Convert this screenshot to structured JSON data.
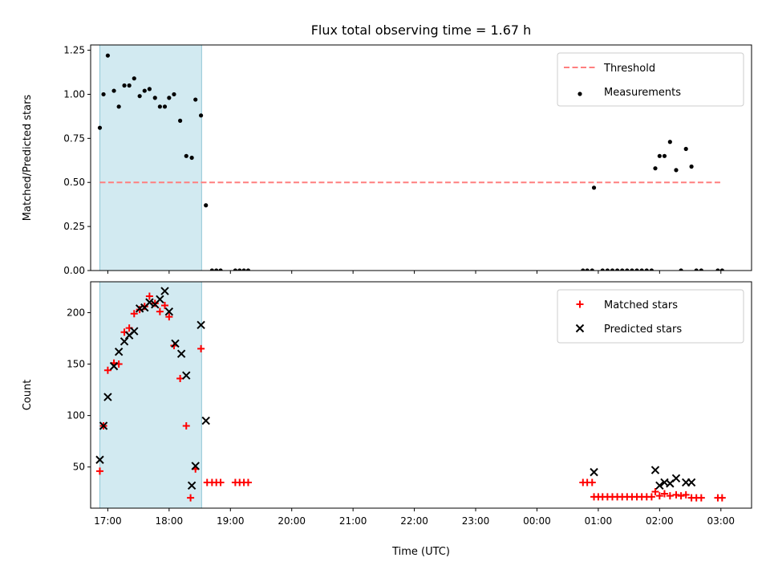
{
  "title": "Flux total observing time = 1.67 h",
  "colors": {
    "span": "#add8e6",
    "threshold": "#ff7f7f",
    "measurement": "#000000",
    "matched": "#ff0000",
    "predicted": "#000000"
  },
  "chart_data": [
    {
      "type": "scatter",
      "ylabel": "Matched/Predicted stars",
      "ylim": [
        0,
        1.28
      ],
      "yticks": [
        0,
        0.25,
        0.5,
        0.75,
        1.0,
        1.25
      ],
      "ytick_labels": [
        "0.00",
        "0.25",
        "0.50",
        "0.75",
        "1.00",
        "1.25"
      ],
      "xlim": [
        16.72,
        27.5
      ],
      "show_x_tick_labels": false,
      "legend_position": "upper right",
      "highlight_span": [
        16.87,
        18.53
      ],
      "threshold": {
        "name": "Threshold",
        "y": 0.5,
        "x_range": [
          16.87,
          27.0
        ],
        "style": "dashed"
      },
      "series": [
        {
          "name": "Measurements",
          "marker": "dot",
          "points": [
            [
              16.87,
              0.81
            ],
            [
              16.93,
              1.0
            ],
            [
              17.0,
              1.22
            ],
            [
              17.1,
              1.02
            ],
            [
              17.18,
              0.93
            ],
            [
              17.27,
              1.05
            ],
            [
              17.35,
              1.05
            ],
            [
              17.43,
              1.09
            ],
            [
              17.52,
              0.99
            ],
            [
              17.6,
              1.02
            ],
            [
              17.68,
              1.03
            ],
            [
              17.77,
              0.98
            ],
            [
              17.85,
              0.93
            ],
            [
              17.93,
              0.93
            ],
            [
              18.0,
              0.98
            ],
            [
              18.08,
              1.0
            ],
            [
              18.18,
              0.85
            ],
            [
              18.28,
              0.65
            ],
            [
              18.37,
              0.64
            ],
            [
              18.43,
              0.97
            ],
            [
              18.52,
              0.88
            ],
            [
              18.6,
              0.37
            ],
            [
              18.7,
              0.0
            ],
            [
              18.77,
              0.0
            ],
            [
              18.84,
              0.0
            ],
            [
              19.08,
              0.0
            ],
            [
              19.15,
              0.0
            ],
            [
              19.22,
              0.0
            ],
            [
              19.29,
              0.0
            ],
            [
              24.75,
              0.0
            ],
            [
              24.82,
              0.0
            ],
            [
              24.9,
              0.0
            ],
            [
              24.93,
              0.47
            ],
            [
              25.07,
              0.0
            ],
            [
              25.15,
              0.0
            ],
            [
              25.23,
              0.0
            ],
            [
              25.31,
              0.0
            ],
            [
              25.39,
              0.0
            ],
            [
              25.47,
              0.0
            ],
            [
              25.55,
              0.0
            ],
            [
              25.63,
              0.0
            ],
            [
              25.71,
              0.0
            ],
            [
              25.79,
              0.0
            ],
            [
              25.87,
              0.0
            ],
            [
              25.93,
              0.58
            ],
            [
              26.0,
              0.65
            ],
            [
              26.08,
              0.65
            ],
            [
              26.17,
              0.73
            ],
            [
              26.27,
              0.57
            ],
            [
              26.43,
              0.69
            ],
            [
              26.52,
              0.59
            ],
            [
              26.35,
              0.0
            ],
            [
              26.6,
              0.0
            ],
            [
              26.68,
              0.0
            ],
            [
              26.95,
              0.0
            ],
            [
              27.02,
              0.0
            ]
          ]
        }
      ]
    },
    {
      "type": "scatter",
      "ylabel": "Count",
      "xlabel": "Time (UTC)",
      "ylim": [
        10,
        230
      ],
      "yticks": [
        50,
        100,
        150,
        200
      ],
      "ytick_labels": [
        "50",
        "100",
        "150",
        "200"
      ],
      "xlim": [
        16.72,
        27.5
      ],
      "xticks": [
        17,
        18,
        19,
        20,
        21,
        22,
        23,
        24,
        25,
        26,
        27
      ],
      "xtick_labels": [
        "17:00",
        "18:00",
        "19:00",
        "20:00",
        "21:00",
        "22:00",
        "23:00",
        "00:00",
        "01:00",
        "02:00",
        "03:00"
      ],
      "legend_position": "upper right",
      "highlight_span": [
        16.87,
        18.53
      ],
      "series": [
        {
          "name": "Matched stars",
          "marker": "plus",
          "points": [
            [
              16.87,
              46
            ],
            [
              16.93,
              90
            ],
            [
              17.0,
              144
            ],
            [
              17.1,
              151
            ],
            [
              17.18,
              150
            ],
            [
              17.27,
              181
            ],
            [
              17.35,
              185
            ],
            [
              17.43,
              199
            ],
            [
              17.52,
              203
            ],
            [
              17.6,
              206
            ],
            [
              17.68,
              216
            ],
            [
              17.77,
              209
            ],
            [
              17.85,
              201
            ],
            [
              17.93,
              207
            ],
            [
              18.0,
              196
            ],
            [
              18.08,
              168
            ],
            [
              18.18,
              136
            ],
            [
              18.28,
              90
            ],
            [
              18.35,
              20
            ],
            [
              18.43,
              48
            ],
            [
              18.52,
              165
            ],
            [
              18.62,
              35
            ],
            [
              18.7,
              35
            ],
            [
              18.77,
              35
            ],
            [
              18.84,
              35
            ],
            [
              19.08,
              35
            ],
            [
              19.15,
              35
            ],
            [
              19.22,
              35
            ],
            [
              19.29,
              35
            ],
            [
              24.75,
              35
            ],
            [
              24.82,
              35
            ],
            [
              24.9,
              35
            ],
            [
              24.93,
              21
            ],
            [
              25.0,
              21
            ],
            [
              25.07,
              21
            ],
            [
              25.15,
              21
            ],
            [
              25.23,
              21
            ],
            [
              25.31,
              21
            ],
            [
              25.39,
              21
            ],
            [
              25.47,
              21
            ],
            [
              25.55,
              21
            ],
            [
              25.63,
              21
            ],
            [
              25.71,
              21
            ],
            [
              25.79,
              21
            ],
            [
              25.87,
              21
            ],
            [
              25.93,
              26
            ],
            [
              26.0,
              22
            ],
            [
              26.08,
              24
            ],
            [
              26.17,
              22
            ],
            [
              26.27,
              23
            ],
            [
              26.35,
              22
            ],
            [
              26.43,
              23
            ],
            [
              26.52,
              20
            ],
            [
              26.6,
              20
            ],
            [
              26.68,
              20
            ],
            [
              26.95,
              20
            ],
            [
              27.02,
              20
            ]
          ]
        },
        {
          "name": "Predicted stars",
          "marker": "x",
          "points": [
            [
              16.87,
              57
            ],
            [
              16.93,
              90
            ],
            [
              17.0,
              118
            ],
            [
              17.1,
              148
            ],
            [
              17.18,
              162
            ],
            [
              17.27,
              172
            ],
            [
              17.35,
              178
            ],
            [
              17.43,
              182
            ],
            [
              17.52,
              204
            ],
            [
              17.6,
              205
            ],
            [
              17.68,
              210
            ],
            [
              17.77,
              208
            ],
            [
              17.85,
              213
            ],
            [
              17.93,
              221
            ],
            [
              18.0,
              201
            ],
            [
              18.1,
              170
            ],
            [
              18.2,
              160
            ],
            [
              18.28,
              139
            ],
            [
              18.37,
              32
            ],
            [
              18.43,
              51
            ],
            [
              18.52,
              188
            ],
            [
              18.6,
              95
            ],
            [
              24.93,
              45
            ],
            [
              25.93,
              47
            ],
            [
              26.0,
              32
            ],
            [
              26.08,
              35
            ],
            [
              26.17,
              34
            ],
            [
              26.27,
              39
            ],
            [
              26.43,
              35
            ],
            [
              26.52,
              35
            ]
          ]
        }
      ]
    }
  ]
}
